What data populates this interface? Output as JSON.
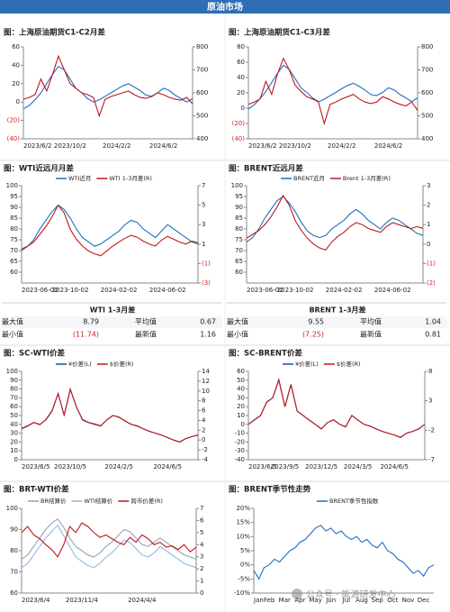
{
  "header": {
    "title": "原油市场"
  },
  "watermark": "公众号 · 能源研发中心",
  "chart_data": [
    {
      "type": "line",
      "title": "图：上海原油期货C1-C2月差",
      "categories": [
        "2023/6/2",
        null,
        null,
        null,
        null,
        null,
        null,
        null,
        "2023/10/2",
        null,
        null,
        null,
        null,
        null,
        null,
        null,
        "2024/2/2",
        null,
        null,
        null,
        null,
        null,
        null,
        null,
        "2024/6/2",
        null,
        null,
        null,
        null,
        null
      ],
      "series": [
        {
          "color": "#1f6fc0",
          "axis": "y2",
          "values": [
            530,
            545,
            570,
            600,
            640,
            680,
            715,
            700,
            660,
            620,
            600,
            575,
            560,
            570,
            585,
            600,
            615,
            630,
            640,
            625,
            610,
            590,
            585,
            600,
            620,
            610,
            590,
            575,
            560,
            575
          ]
        },
        {
          "color": "#c0171c",
          "values": [
            3,
            5,
            8,
            25,
            12,
            30,
            50,
            35,
            20,
            15,
            10,
            8,
            5,
            -15,
            3,
            6,
            8,
            10,
            12,
            8,
            5,
            4,
            6,
            10,
            8,
            5,
            3,
            2,
            5,
            -2
          ]
        }
      ],
      "ylim": [
        -40,
        60
      ],
      "yticks": [
        60,
        40,
        20,
        0,
        {
          "value": -20,
          "label": "(20)"
        },
        {
          "value": -40,
          "label": "(40)"
        }
      ],
      "y2lim": [
        400,
        800
      ],
      "y2ticks": [
        800,
        700,
        600,
        500,
        400
      ]
    },
    {
      "type": "line",
      "title": "图：上海原油期货C1-C3月差",
      "categories": [
        "2023/6/2",
        null,
        null,
        null,
        null,
        null,
        null,
        null,
        "2023/10/2",
        null,
        null,
        null,
        null,
        null,
        null,
        null,
        "2024/2/2",
        null,
        null,
        null,
        null,
        null,
        null,
        null,
        "2024/6/2",
        null,
        null,
        null,
        null,
        null
      ],
      "series": [
        {
          "color": "#1f6fc0",
          "axis": "y2",
          "values": [
            530,
            548,
            575,
            605,
            645,
            685,
            720,
            702,
            662,
            622,
            602,
            578,
            562,
            572,
            588,
            602,
            618,
            632,
            642,
            628,
            612,
            592,
            588,
            602,
            622,
            612,
            592,
            578,
            562,
            578
          ]
        },
        {
          "color": "#c0171c",
          "values": [
            5,
            8,
            12,
            35,
            18,
            45,
            65,
            50,
            30,
            22,
            15,
            12,
            8,
            -20,
            5,
            8,
            12,
            15,
            18,
            12,
            8,
            6,
            8,
            15,
            12,
            8,
            5,
            3,
            8,
            -3
          ]
        }
      ],
      "ylim": [
        -40,
        80
      ],
      "yticks": [
        80,
        60,
        40,
        20,
        0,
        {
          "value": -20,
          "label": "(20)"
        },
        {
          "value": -40,
          "label": "(40)"
        }
      ],
      "y2lim": [
        400,
        800
      ],
      "y2ticks": [
        800,
        700,
        600,
        500,
        400
      ]
    },
    {
      "type": "line",
      "title": "图：WTI近远月月差",
      "categories": [
        "2023-06-02",
        null,
        null,
        null,
        null,
        null,
        null,
        null,
        "2023-10-02",
        null,
        null,
        null,
        null,
        null,
        null,
        null,
        "2024-02-02",
        null,
        null,
        null,
        null,
        null,
        null,
        null,
        "2024-06-02",
        null,
        null,
        null,
        null,
        null
      ],
      "series": [
        {
          "name": "WTI近月",
          "color": "#1f6fc0",
          "values": [
            70,
            72,
            75,
            80,
            84,
            88,
            91,
            89,
            85,
            80,
            76,
            74,
            72,
            73,
            75,
            77,
            79,
            82,
            84,
            83,
            80,
            78,
            76,
            79,
            82,
            80,
            78,
            76,
            74,
            73
          ]
        },
        {
          "name": "WTI 1-3月差(R)",
          "color": "#c0171c",
          "axis": "y2",
          "values": [
            0.5,
            0.8,
            1.2,
            2.0,
            2.8,
            3.8,
            5.0,
            4.2,
            2.5,
            1.5,
            0.8,
            0.3,
            0.0,
            -0.2,
            0.3,
            0.8,
            1.2,
            1.6,
            1.9,
            1.7,
            1.3,
            1.0,
            0.8,
            1.4,
            1.8,
            1.5,
            1.2,
            1.0,
            1.3,
            1.16
          ]
        }
      ],
      "ylim": [
        55,
        100
      ],
      "yticks": [
        100,
        95,
        90,
        85,
        80,
        75,
        70,
        65,
        60
      ],
      "y2lim": [
        -3,
        7
      ],
      "y2ticks": [
        7,
        5,
        3,
        1,
        {
          "value": -1,
          "label": "(1)"
        },
        {
          "value": -3,
          "label": "(3)"
        }
      ]
    },
    {
      "type": "line",
      "title": "图：BRENT近远月差",
      "categories": [
        "2023-06-02",
        null,
        null,
        null,
        null,
        null,
        null,
        null,
        "2023-10-02",
        null,
        null,
        null,
        null,
        null,
        null,
        null,
        "2024-02-02",
        null,
        null,
        null,
        null,
        null,
        null,
        null,
        "2024-06-02",
        null,
        null,
        null,
        null,
        null
      ],
      "series": [
        {
          "name": "BRENT近月",
          "color": "#1f6fc0",
          "values": [
            74,
            76,
            80,
            85,
            89,
            93,
            95,
            92,
            88,
            83,
            79,
            77,
            76,
            77,
            80,
            82,
            84,
            87,
            89,
            87,
            84,
            82,
            80,
            83,
            85,
            84,
            82,
            80,
            78,
            77
          ]
        },
        {
          "name": "Brent 1-3月差(R)",
          "color": "#c0171c",
          "axis": "y2",
          "values": [
            0.3,
            0.5,
            0.7,
            1.0,
            1.4,
            1.9,
            2.5,
            2.0,
            1.2,
            0.7,
            0.3,
            0.0,
            -0.2,
            -0.3,
            0.1,
            0.4,
            0.6,
            0.9,
            1.1,
            1.0,
            0.8,
            0.7,
            0.6,
            0.9,
            1.1,
            1.0,
            0.9,
            0.8,
            0.9,
            0.81
          ]
        }
      ],
      "ylim": [
        55,
        100
      ],
      "yticks": [
        100,
        95,
        90,
        85,
        80,
        75,
        70,
        65,
        60
      ],
      "y2lim": [
        -2,
        3
      ],
      "y2ticks": [
        3,
        2,
        1,
        0,
        {
          "value": -1,
          "label": "(1)"
        },
        {
          "value": -2,
          "label": "(2)"
        }
      ]
    },
    {
      "type": "line",
      "title": "图：SC-WTI价差",
      "categories": [
        "2023/6/5",
        null,
        null,
        null,
        null,
        null,
        null,
        null,
        "2023/10/5",
        null,
        null,
        null,
        null,
        null,
        null,
        null,
        "2024/2/5",
        null,
        null,
        null,
        null,
        null,
        null,
        null,
        "2024/6/5",
        null,
        null,
        null,
        null,
        null
      ],
      "series": [
        {
          "name": "¥价差(L)",
          "color": "#1f4fa0",
          "values": [
            35,
            38,
            42,
            40,
            45,
            55,
            75,
            50,
            80,
            60,
            45,
            42,
            40,
            38,
            45,
            50,
            48,
            44,
            40,
            38,
            35,
            32,
            30,
            28,
            25,
            22,
            20,
            24,
            26,
            28
          ]
        },
        {
          "name": "$价差(R)",
          "color": "#c0171c",
          "axis": "y2",
          "values": [
            2.4,
            2.9,
            3.6,
            3.1,
            4.2,
            6.0,
            9.4,
            5.1,
            10.3,
            6.8,
            4.2,
            3.6,
            3.3,
            2.9,
            4.1,
            5.0,
            4.7,
            3.9,
            3.2,
            2.9,
            2.3,
            1.8,
            1.4,
            1.0,
            0.5,
            0.0,
            -0.4,
            0.3,
            0.7,
            1.0
          ]
        }
      ],
      "ylim": [
        0,
        100
      ],
      "yticks": [
        100,
        90,
        80,
        70,
        60,
        50,
        40,
        30,
        20,
        10,
        0
      ],
      "y2lim": [
        -4,
        14
      ],
      "y2ticks": [
        14,
        12,
        10,
        8,
        6,
        4,
        2,
        0,
        -2,
        -4
      ]
    },
    {
      "type": "line",
      "title": "图：SC-BRENT价差",
      "categories": [
        "2023/6/5",
        null,
        null,
        null,
        null,
        null,
        "2023/9/5",
        null,
        null,
        null,
        null,
        null,
        "2023/12/5",
        null,
        null,
        null,
        null,
        null,
        "2024/3/5",
        null,
        null,
        null,
        null,
        null,
        "2024/6/5",
        null,
        null,
        null,
        null,
        null
      ],
      "series": [
        {
          "name": "¥价差(L)",
          "color": "#1f4fa0",
          "values": [
            0,
            5,
            10,
            25,
            30,
            50,
            20,
            45,
            15,
            10,
            5,
            0,
            -5,
            2,
            5,
            0,
            -3,
            10,
            5,
            0,
            -2,
            -5,
            -8,
            -10,
            -12,
            -15,
            -10,
            -8,
            -5,
            0
          ]
        },
        {
          "name": "$价差(R)",
          "color": "#c0171c",
          "axis": "y2",
          "values": [
            -1.0,
            -0.2,
            0.5,
            2.8,
            3.5,
            6.6,
            2.0,
            5.8,
            1.3,
            0.5,
            -0.3,
            -1.0,
            -1.8,
            -0.7,
            -0.2,
            -1.0,
            -1.4,
            0.5,
            -0.3,
            -1.0,
            -1.3,
            -1.8,
            -2.2,
            -2.5,
            -2.8,
            -3.2,
            -2.5,
            -2.2,
            -1.8,
            -1.0
          ]
        }
      ],
      "ylim": [
        -40,
        60
      ],
      "yticks": [
        60,
        50,
        40,
        30,
        20,
        10,
        0,
        -10,
        -20,
        -30,
        -40
      ],
      "y2lim": [
        -7,
        8
      ],
      "y2ticks": [
        8,
        3,
        -2,
        -7
      ]
    },
    {
      "type": "line",
      "title": "图：BRT-WTI价差",
      "categories": [
        "2023/6/4",
        null,
        null,
        null,
        null,
        null,
        null,
        null,
        null,
        null,
        "2023/11/4",
        null,
        null,
        null,
        null,
        null,
        null,
        null,
        null,
        null,
        "2024/4/4",
        null,
        null,
        null,
        null,
        null,
        null,
        null,
        null,
        null
      ],
      "series": [
        {
          "name": "BR结算价",
          "color": "#9aa3b0",
          "values": [
            76,
            78,
            82,
            86,
            90,
            93,
            95,
            91,
            86,
            82,
            80,
            78,
            77,
            79,
            82,
            84,
            87,
            90,
            89,
            86,
            83,
            82,
            84,
            86,
            84,
            82,
            80,
            78,
            77,
            76
          ]
        },
        {
          "name": "WTI结算价",
          "color": "#8fb8e0",
          "values": [
            72,
            74,
            78,
            82,
            86,
            89,
            92,
            87,
            82,
            77,
            75,
            73,
            72,
            74,
            77,
            79,
            82,
            85,
            84,
            81,
            78,
            77,
            79,
            82,
            80,
            78,
            76,
            74,
            73,
            72
          ]
        },
        {
          "name": "跨市价差(R)",
          "color": "#c0171c",
          "axis": "y2",
          "values": [
            5.0,
            5.5,
            4.8,
            4.5,
            4.0,
            3.6,
            3.0,
            4.0,
            5.5,
            5.0,
            5.8,
            5.5,
            5.0,
            4.6,
            4.8,
            4.5,
            4.2,
            4.0,
            4.6,
            4.2,
            4.8,
            4.5,
            4.0,
            4.2,
            3.8,
            3.9,
            3.6,
            4.0,
            3.4,
            3.8
          ]
        }
      ],
      "ylim": [
        60,
        100
      ],
      "yticks": [
        100,
        90,
        80,
        70,
        60
      ],
      "y2lim": [
        0,
        7
      ],
      "y2ticks": [
        7,
        6,
        5,
        4,
        3,
        2,
        1,
        0
      ]
    },
    {
      "type": "line",
      "title": "图：BRENT季节性走势",
      "categories": [
        "Jan",
        null,
        null,
        "Feb",
        null,
        null,
        "Mar",
        null,
        null,
        "Apr",
        null,
        null,
        "May",
        null,
        null,
        "Jun",
        null,
        null,
        "Jul",
        null,
        null,
        "Aug",
        null,
        null,
        "Sep",
        null,
        null,
        "Oct",
        null,
        null,
        "Nov",
        null,
        null,
        "Dec",
        null,
        null
      ],
      "series": [
        {
          "name": "BRENT季节性指数",
          "color": "#1f6fc0",
          "values": [
            -2,
            -5,
            -1,
            0,
            2,
            1,
            3,
            5,
            6,
            8,
            9,
            11,
            13,
            14,
            12,
            13,
            11,
            12,
            10,
            9,
            10,
            8,
            9,
            7,
            6,
            8,
            5,
            4,
            2,
            1,
            -1,
            -3,
            -2,
            -4,
            -1,
            0
          ]
        }
      ],
      "ylim": [
        -10,
        20
      ],
      "yticks": [
        {
          "value": 20,
          "label": "20%"
        },
        {
          "value": 15,
          "label": "15%"
        },
        {
          "value": 10,
          "label": "10%"
        },
        {
          "value": 5,
          "label": "5%"
        },
        {
          "value": 0,
          "label": "0%"
        },
        {
          "value": -5,
          "label": "-5%"
        },
        {
          "value": -10,
          "label": "-10%"
        }
      ]
    }
  ],
  "stats": [
    {
      "title": "WTI 1-3月差",
      "rows": [
        [
          "最大值",
          "8.79",
          "平均值",
          "0.67"
        ],
        [
          "最小值",
          "(11.74)",
          "最新值",
          "1.16"
        ]
      ]
    },
    {
      "title": "BRENT 1-3月差",
      "rows": [
        [
          "最大值",
          "9.55",
          "平均值",
          "1.04"
        ],
        [
          "最小值",
          "(7.25)",
          "最新值",
          "0.81"
        ]
      ]
    }
  ]
}
